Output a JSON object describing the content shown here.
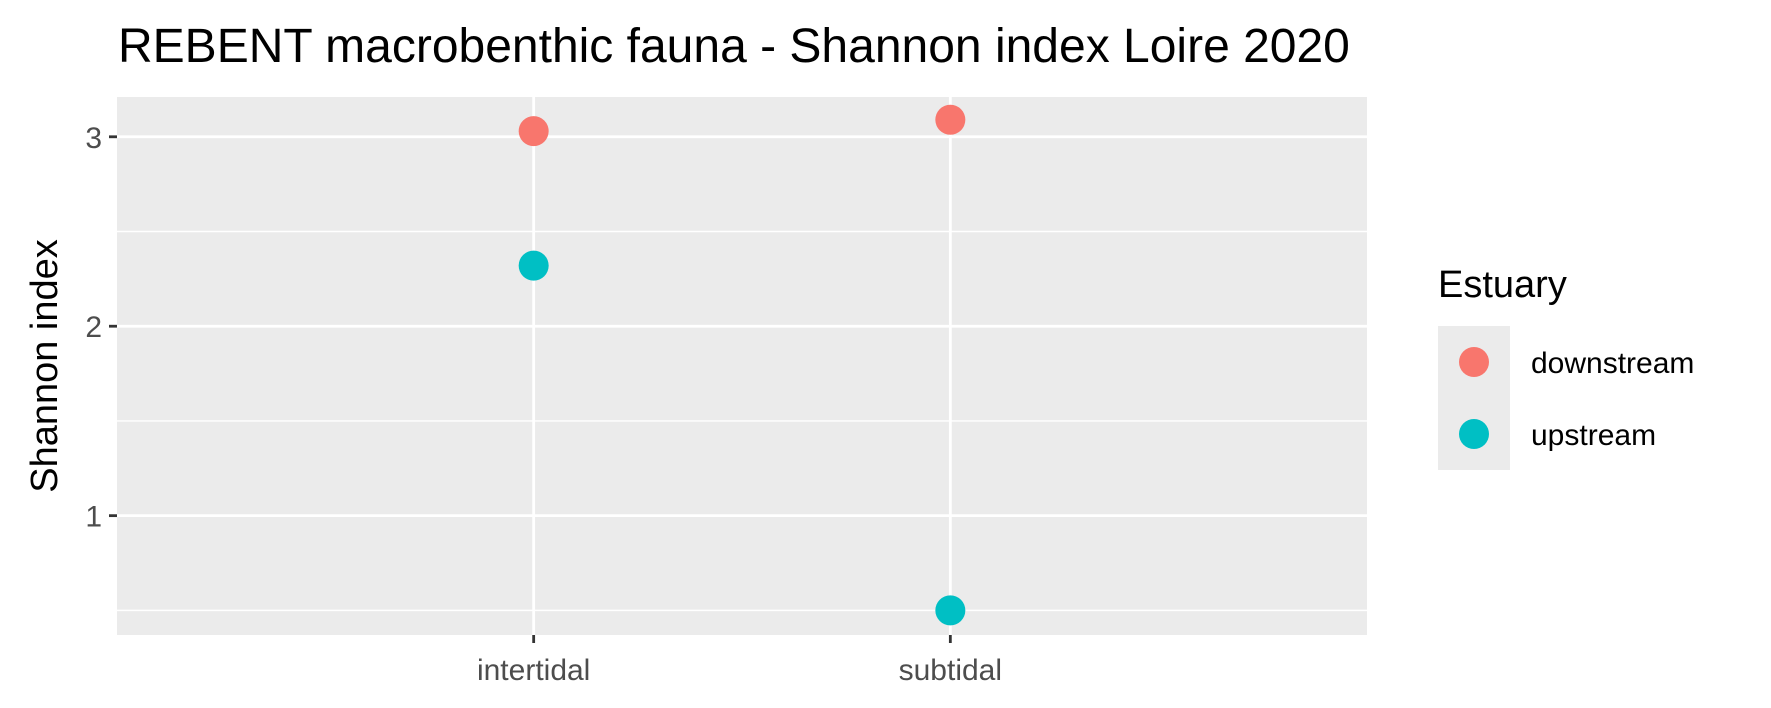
{
  "chart_data": {
    "type": "scatter",
    "title": "REBENT macrobenthic fauna - Shannon index Loire 2020",
    "xlabel": "",
    "ylabel": "Shannon index",
    "categories": [
      "intertidal",
      "subtidal"
    ],
    "yticks": [
      1,
      2,
      3
    ],
    "ylim": [
      0.37,
      3.21
    ],
    "grid": true,
    "legend": {
      "title": "Estuary",
      "placement": "right"
    },
    "series": [
      {
        "name": "downstream",
        "color": "#F8766D",
        "values": [
          3.03,
          3.09
        ]
      },
      {
        "name": "upstream",
        "color": "#00BFC4",
        "values": [
          2.32,
          0.5
        ]
      }
    ]
  }
}
